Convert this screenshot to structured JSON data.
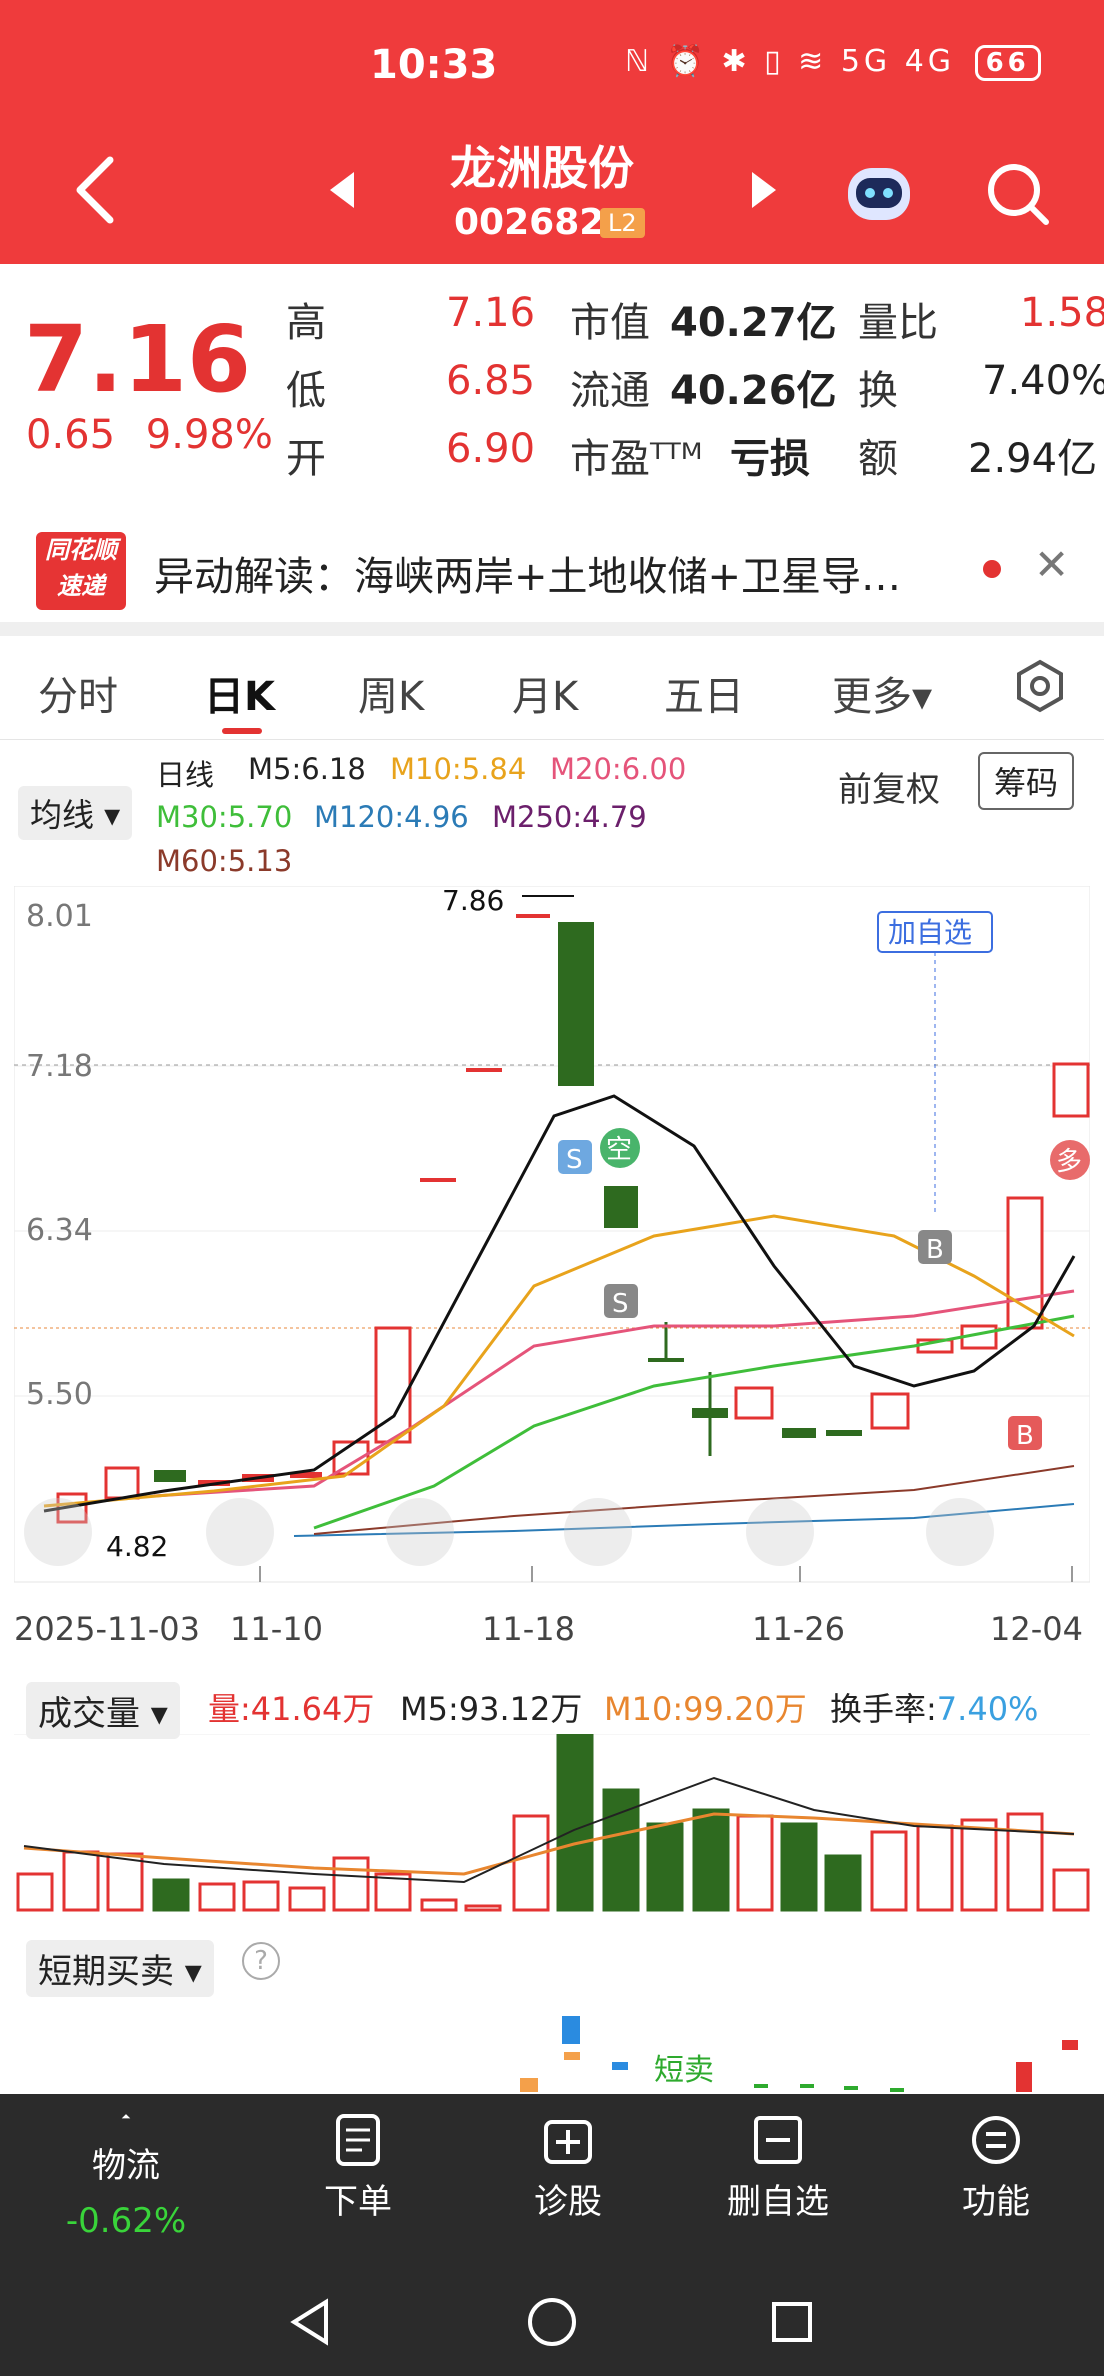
{
  "status": {
    "time": "10:33",
    "icons": "ℕ ⏰ ✱ ▯ ≋ 5G 4G",
    "battery": "66"
  },
  "header": {
    "name": "龙洲股份",
    "code": "002682",
    "badge": "L2"
  },
  "quote": {
    "price": "7.16",
    "change": "0.65",
    "change_pct": "9.98%",
    "high_label": "高",
    "high": "7.16",
    "low_label": "低",
    "low": "6.85",
    "open_label": "开",
    "open": "6.90",
    "mcap_label": "市值",
    "mcap": "40.27亿",
    "float_label": "流通",
    "float": "40.26亿",
    "pe_label": "市盈ᵀᵀᴹ",
    "pe": "亏损",
    "vr_label": "量比",
    "vr": "1.58",
    "turnover_label": "换",
    "turnover": "7.40%",
    "amount_label": "额",
    "amount": "2.94亿"
  },
  "news": {
    "logo_line1": "同花顺",
    "logo_line2": "速递",
    "text": "异动解读：海峡两岸+土地收储+卫星导…"
  },
  "tabs": {
    "t1": "分时",
    "t2": "日K",
    "t3": "周K",
    "t4": "月K",
    "t5": "五日",
    "t6": "更多▾"
  },
  "ma": {
    "select": "均线 ▾",
    "daily": "日线",
    "m5": "M5:6.18",
    "m10": "M10:5.84",
    "m20": "M20:6.00",
    "m30": "M30:5.70",
    "m120": "M120:4.96",
    "m250": "M250:4.79",
    "m60": "M60:5.13",
    "fq": "前复权",
    "chips": "筹码"
  },
  "chart_data": {
    "type": "candlestick",
    "yticks": [
      "8.01",
      "7.18",
      "6.34",
      "5.50"
    ],
    "high_marker": "7.86",
    "low_marker": "4.82",
    "add_watch": "加自选",
    "dates": [
      "2025-11-03",
      "11-10",
      "11-18",
      "11-26",
      "12-04"
    ],
    "signals": {
      "s": "S",
      "b": "B",
      "kong": "空",
      "duo": "多"
    }
  },
  "volume": {
    "select": "成交量 ▾",
    "vol": "量:41.64万",
    "m5": "M5:93.12万",
    "m10": "M10:99.20万",
    "turn_label": "换手率:",
    "turn": "7.40%"
  },
  "short": {
    "select": "短期买卖 ▾",
    "help": "?",
    "sell_label": "短卖"
  },
  "toolbar": {
    "i1": "物流",
    "i1_val": "-0.62%",
    "i2": "下单",
    "i3": "诊股",
    "i4": "删自选",
    "i5": "功能"
  }
}
